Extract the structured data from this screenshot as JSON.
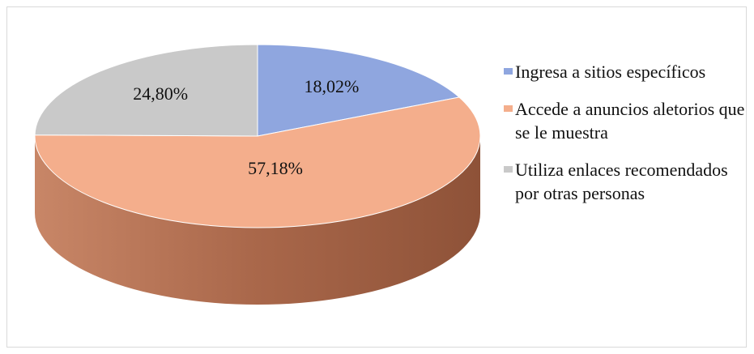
{
  "chart_data": {
    "type": "pie3d",
    "categories": [
      "Ingresa a sitios específicos",
      "Accede a anuncios aletorios que se le muestra",
      "Utiliza enlaces recomendados por otras personas"
    ],
    "values": [
      18.02,
      57.18,
      24.8
    ],
    "value_labels": [
      "18,02%",
      "57,18%",
      "24,80%"
    ],
    "colors": [
      "#8fa6df",
      "#f4ae8c",
      "#c9c9c9"
    ]
  }
}
